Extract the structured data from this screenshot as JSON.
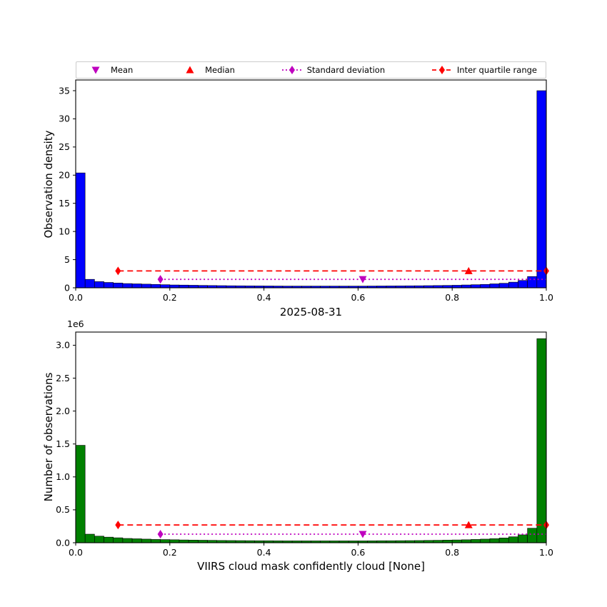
{
  "figure": {
    "title": "2025-08-31",
    "xlabel": "VIIRS cloud mask confidently cloud [None]",
    "background": "#ffffff"
  },
  "colors": {
    "mean": "#bf00bf",
    "median": "#ff0000",
    "std": "#bf00bf",
    "iqr": "#ff0000",
    "axes": "#000000",
    "bar_top": "#0000ff",
    "bar_bottom": "#008000"
  },
  "legend": {
    "items": [
      {
        "label": "Mean",
        "marker": "triangle-down",
        "color": "#bf00bf",
        "line": "none"
      },
      {
        "label": "Median",
        "marker": "triangle-up",
        "color": "#ff0000",
        "line": "none"
      },
      {
        "label": "Standard deviation",
        "marker": "diamond",
        "color": "#bf00bf",
        "line": "dotted"
      },
      {
        "label": "Inter quartile range",
        "marker": "diamond",
        "color": "#ff0000",
        "line": "dashed"
      }
    ]
  },
  "chart_data": [
    {
      "type": "bar",
      "subtype": "histogram",
      "ylabel": "Observation density",
      "bar_color": "#0000ff",
      "bin_start": 0.0,
      "bin_width": 0.02,
      "values": [
        20.4,
        1.5,
        1.1,
        0.95,
        0.85,
        0.75,
        0.7,
        0.65,
        0.6,
        0.55,
        0.5,
        0.48,
        0.45,
        0.42,
        0.4,
        0.38,
        0.36,
        0.35,
        0.34,
        0.33,
        0.32,
        0.31,
        0.3,
        0.3,
        0.3,
        0.3,
        0.3,
        0.3,
        0.3,
        0.3,
        0.3,
        0.31,
        0.32,
        0.33,
        0.34,
        0.35,
        0.36,
        0.38,
        0.4,
        0.42,
        0.45,
        0.5,
        0.55,
        0.6,
        0.7,
        0.8,
        1.0,
        1.3,
        2.0,
        35.0
      ],
      "xlim": [
        0.0,
        1.0
      ],
      "ylim": [
        0,
        36.9
      ],
      "xticks": [
        0.0,
        0.2,
        0.4,
        0.6,
        0.8,
        1.0
      ],
      "xtick_labels": [
        "0.0",
        "0.2",
        "0.4",
        "0.6",
        "0.8",
        "1.0"
      ],
      "yticks": [
        0,
        5,
        10,
        15,
        20,
        25,
        30,
        35
      ],
      "ytick_labels": [
        "0",
        "5",
        "10",
        "15",
        "20",
        "25",
        "30",
        "35"
      ],
      "grid": false,
      "stats": {
        "mean": 0.61,
        "median": 0.835,
        "std_line": {
          "x": [
            0.18,
            1.0
          ],
          "y": 1.5
        },
        "iqr_line": {
          "x": [
            0.09,
            1.0
          ],
          "y": 3.0
        }
      }
    },
    {
      "type": "bar",
      "subtype": "histogram",
      "ylabel": "Number of observations",
      "offset_label": "1e6",
      "unit": "1e6",
      "bar_color": "#008000",
      "bin_start": 0.0,
      "bin_width": 0.02,
      "values": [
        1.48,
        0.13,
        0.1,
        0.085,
        0.075,
        0.065,
        0.06,
        0.055,
        0.05,
        0.048,
        0.045,
        0.042,
        0.04,
        0.038,
        0.036,
        0.034,
        0.033,
        0.032,
        0.031,
        0.03,
        0.03,
        0.029,
        0.028,
        0.028,
        0.028,
        0.028,
        0.028,
        0.028,
        0.028,
        0.028,
        0.028,
        0.029,
        0.03,
        0.03,
        0.031,
        0.032,
        0.033,
        0.035,
        0.037,
        0.04,
        0.042,
        0.045,
        0.05,
        0.055,
        0.062,
        0.072,
        0.09,
        0.12,
        0.22,
        3.1
      ],
      "xlim": [
        0.0,
        1.0
      ],
      "ylim": [
        0,
        3.2
      ],
      "xticks": [
        0.0,
        0.2,
        0.4,
        0.6,
        0.8,
        1.0
      ],
      "xtick_labels": [
        "0.0",
        "0.2",
        "0.4",
        "0.6",
        "0.8",
        "1.0"
      ],
      "yticks": [
        0.0,
        0.5,
        1.0,
        1.5,
        2.0,
        2.5,
        3.0
      ],
      "ytick_labels": [
        "0.0",
        "0.5",
        "1.0",
        "1.5",
        "2.0",
        "2.5",
        "3.0"
      ],
      "grid": false,
      "stats": {
        "mean": 0.61,
        "median": 0.835,
        "std_line": {
          "x": [
            0.18,
            1.0
          ],
          "y": 0.13
        },
        "iqr_line": {
          "x": [
            0.09,
            1.0
          ],
          "y": 0.27
        }
      }
    }
  ]
}
